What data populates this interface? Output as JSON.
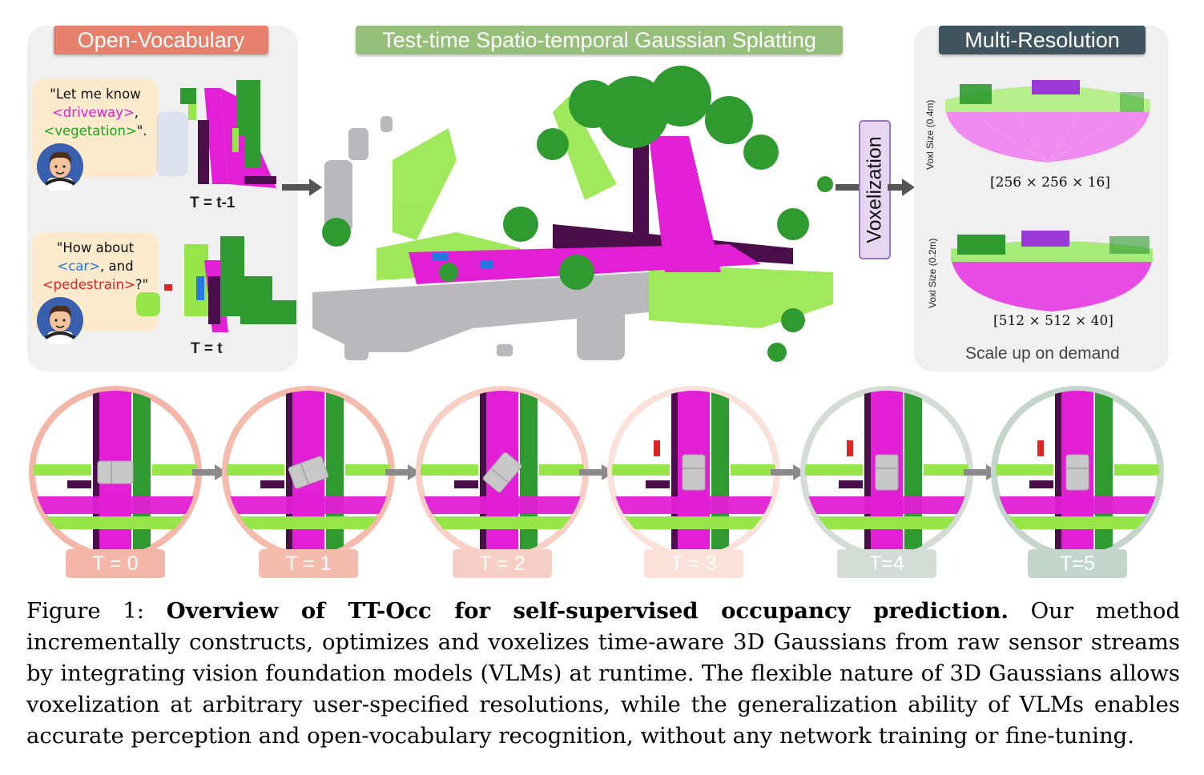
{
  "panels": {
    "open_vocab": {
      "title": "Open-Vocabulary",
      "title_color": "#e4806b",
      "query1": {
        "line1": "\"Let me know",
        "kw1": "<driveway>",
        "sep": ",",
        "kw2": "<vegetation>",
        "end": "\"."
      },
      "time1": "T = t-1",
      "query2": {
        "line1": "\"How about",
        "kw1": "<car>",
        "mid": ", and",
        "kw2": "<pedestrain>",
        "end": "?\""
      },
      "time2": "T = t"
    },
    "center": {
      "title": "Test-time Spatio-temporal Gaussian Splatting",
      "title_color": "#96bf79"
    },
    "voxelization_label": "Voxelization",
    "multi_res": {
      "title": "Multi-Resolution",
      "title_color": "#3f5560",
      "coarse_side_label": "Voxl Size (0.4m)",
      "coarse_dim": "[256 × 256 × 16]",
      "fine_side_label": "Voxl Size (0.2m)",
      "fine_dim": "[512 × 512 × 40]",
      "footer": "Scale up on demand"
    }
  },
  "timeline": [
    {
      "label": "T = 0",
      "color": "#f4b6a8"
    },
    {
      "label": "T = 1",
      "color": "#f5bcae"
    },
    {
      "label": "T = 2",
      "color": "#f8cfc5"
    },
    {
      "label": "T = 3",
      "color": "#fae1da"
    },
    {
      "label": "T=4",
      "color": "#d4dcd6"
    },
    {
      "label": "T=5",
      "color": "#c4d6cc"
    }
  ],
  "caption": {
    "prefix": "Figure 1:  ",
    "bold": "Overview of TT-Occ for self-supervised occupancy prediction.",
    "body": "  Our method incrementally constructs, optimizes and voxelizes time-aware 3D Gaussians from raw sensor streams by integrating vision foundation models (VLMs) at runtime. The flexible nature of 3D Gaussians allows voxelization at arbitrary user-specified resolutions, while the generalization ability of VLMs enables accurate perception and open-vocabulary recognition, without any network training or fine-tuning."
  },
  "colors": {
    "driveway": "#e21fd4",
    "vegetation": "#2f9a2f",
    "terrain": "#96e64a",
    "sidewalk": "#4a0f4a",
    "car": "#c8c8c8",
    "pedestrian": "#e02424"
  }
}
